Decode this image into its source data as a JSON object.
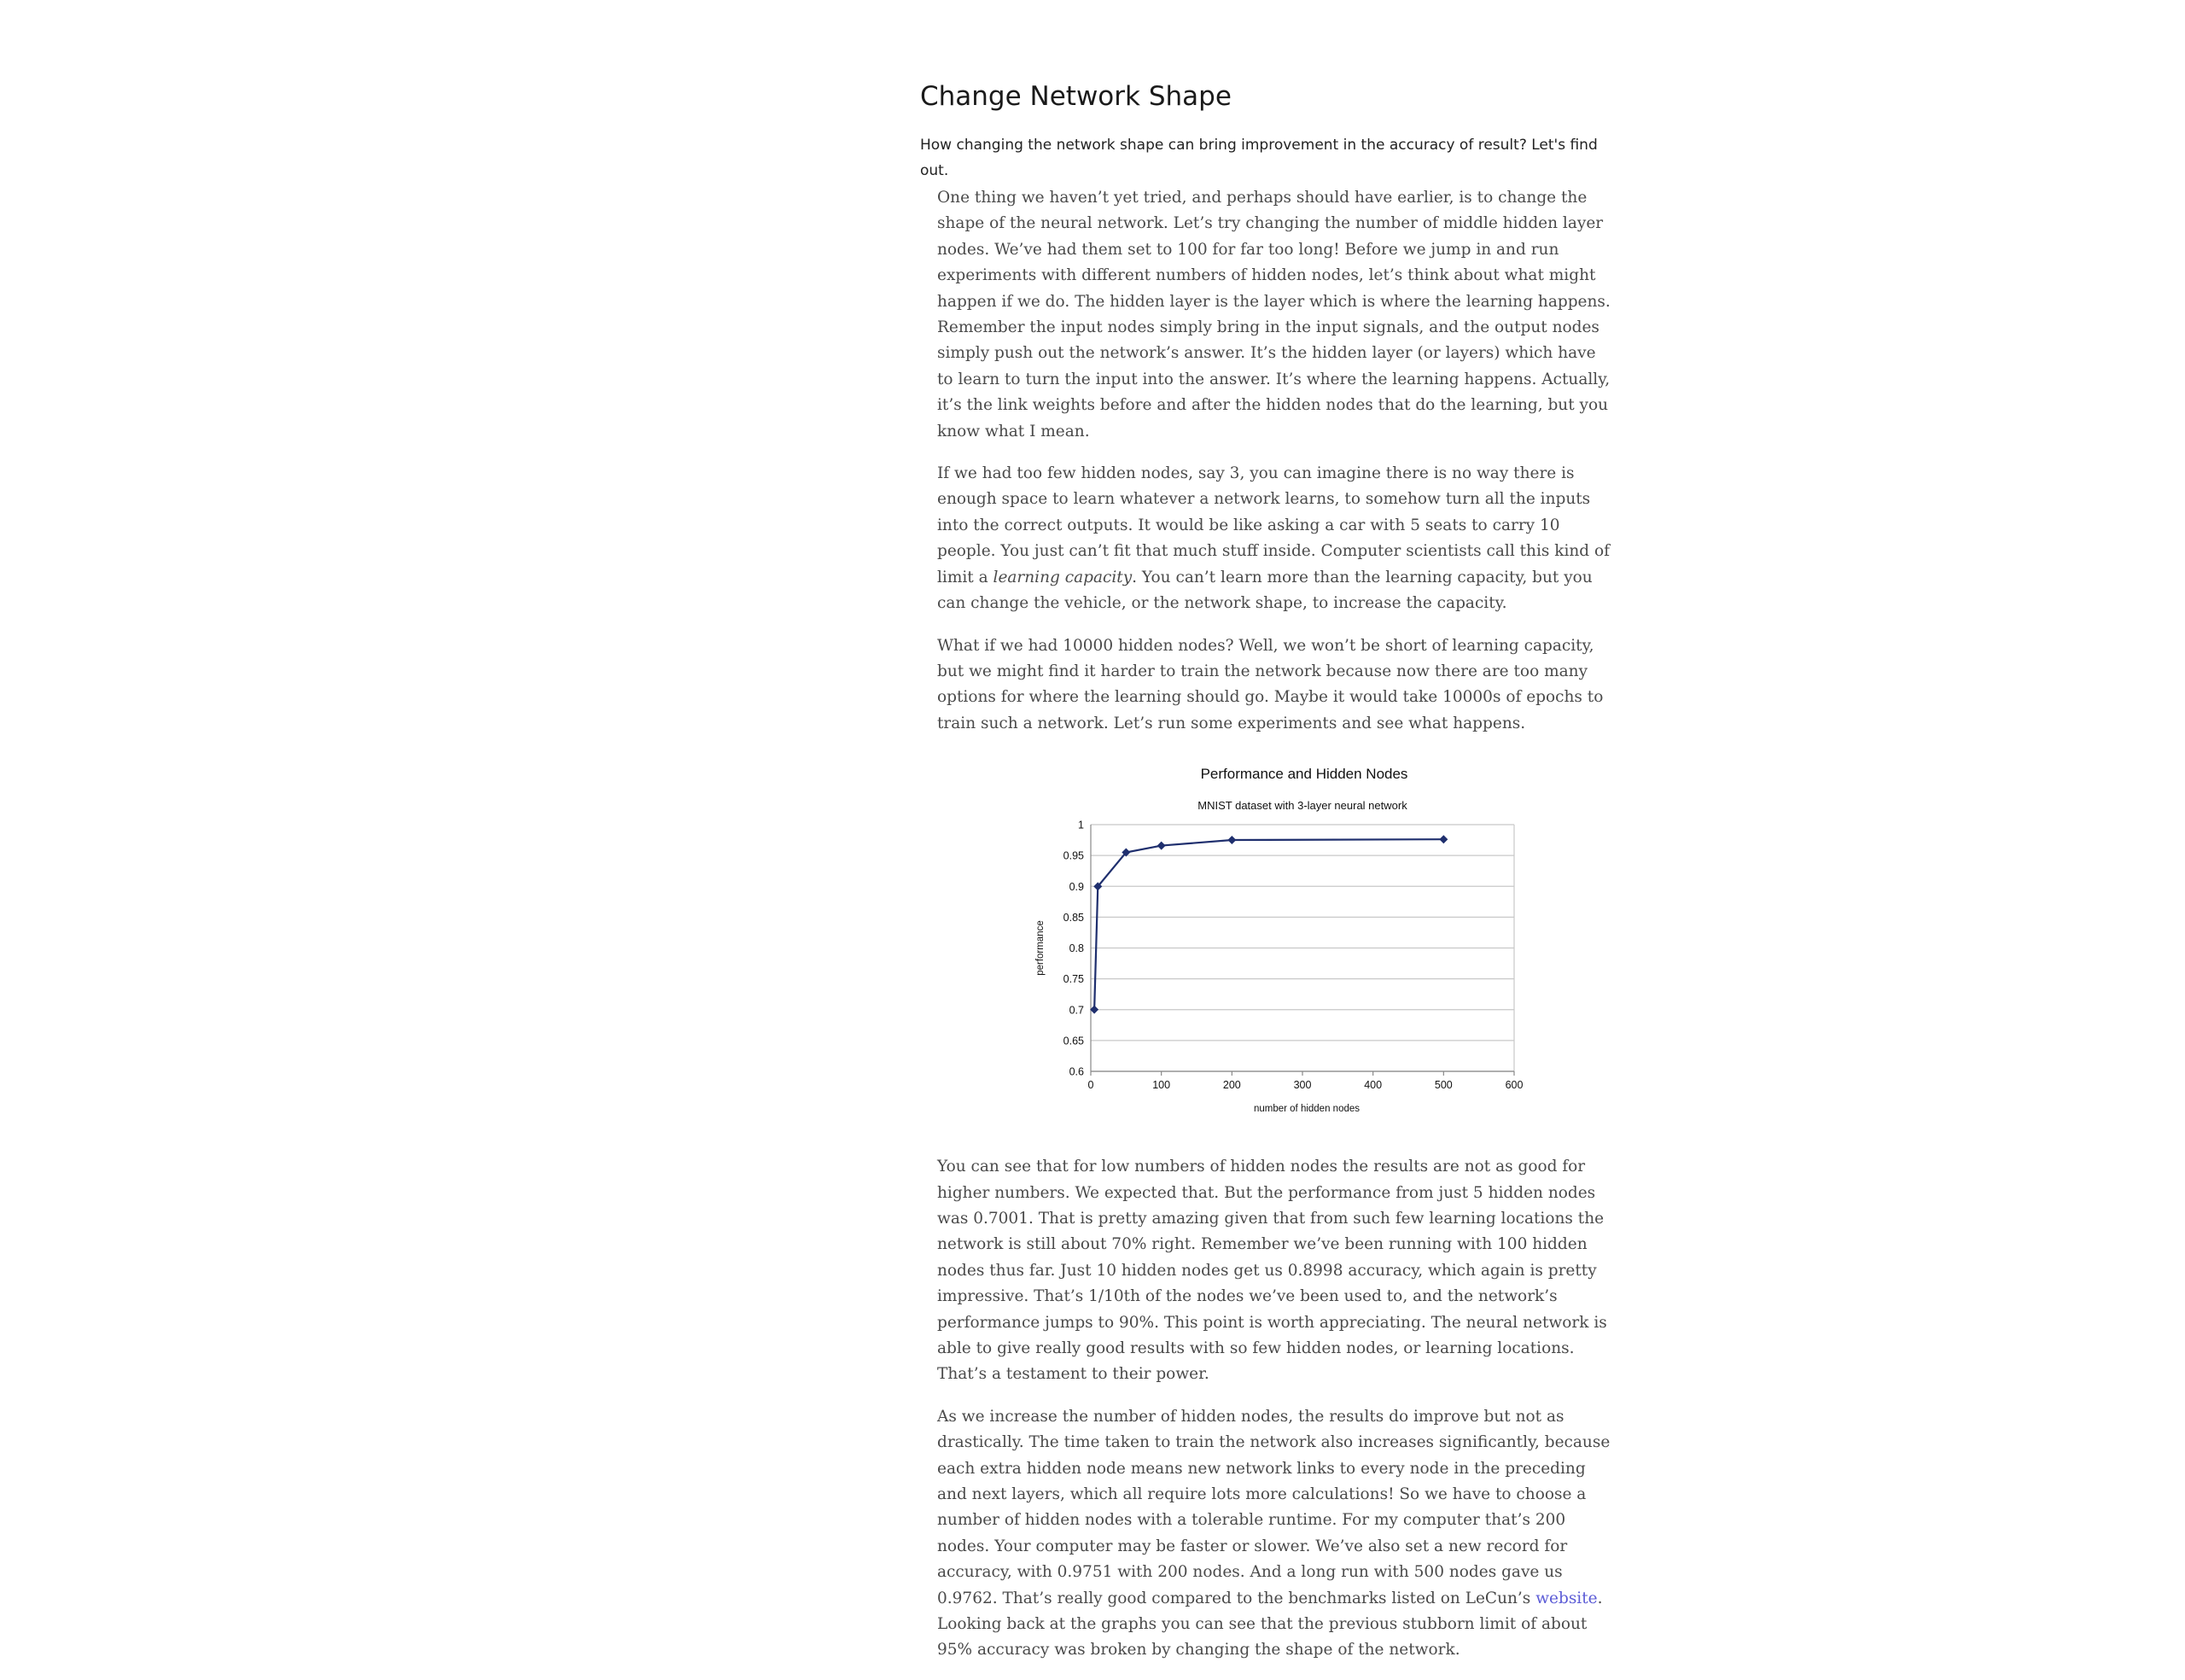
{
  "header": {
    "title": "Change Network Shape",
    "subtitle": "How changing the network shape can bring improvement in the accuracy of result? Let's find out."
  },
  "article": {
    "p1": "One thing we haven’t yet tried, and perhaps should have earlier, is to change the shape of the neural network. Let’s try changing the number of middle hidden layer nodes. We’ve had them set to 100 for far too long! Before we jump in and run experiments with different numbers of hidden nodes, let’s think about what might happen if we do. The hidden layer is the layer which is where the learning happens. Remember the input nodes simply bring in the input signals, and the output nodes simply push out the network’s answer. It’s the hidden layer (or layers) which have to learn to turn the input into the answer. It’s where the learning happens. Actually, it’s the link weights before and after the hidden nodes that do the learning, but you know what I mean.",
    "p2_a": "If we had too few hidden nodes, say 3, you can imagine there is no way there is enough space to learn whatever a network learns, to somehow turn all the inputs into the correct outputs. It would be like asking a car with 5 seats to carry 10 people. You just can’t fit that much stuff inside. Computer scientists call this kind of limit a ",
    "p2_em": "learning capacity",
    "p2_b": ". You can’t learn more than the learning capacity, but you can change the vehicle, or the network shape, to increase the capacity.",
    "p3": "What if we had 10000 hidden nodes? Well, we won’t be short of learning capacity, but we might find it harder to train the network because now there are too many options for where the learning should go. Maybe it would take 10000s of epochs to train such a network. Let’s run some experiments and see what happens.",
    "p4_a": "You can see that for low numbers of hidden nodes the results are not as good for higher numbers. We expected that. But the performance from just 5 hidden nodes was 0.7001. That is pretty amazing given that from such few learning locations the network is still about 70% right. Remember we’ve been running with 100 hidden nodes thus far. Just 10 hidden nodes get us 0.8998 accuracy, which again is pretty impressive. That’s ",
    "p4_math": "1/10th",
    "p4_b": " of the nodes we’ve been used to, and the network’s performance jumps to 90%. This point is worth appreciating. The neural network is able to give really good results with so few hidden nodes, or learning locations. That’s a testament to their power.",
    "p5_a": "As we increase the number of hidden nodes, the results do improve but not as drastically. The time taken to train the network also increases significantly, because each extra hidden node means new network links to every node in the preceding and next layers, which all require lots more calculations! So we have to choose a number of hidden nodes with a tolerable runtime. For my computer that’s 200 nodes. Your computer may be faster or slower. We’ve also set a new record for accuracy, with 0.9751 with 200 nodes. And a long run with 500 nodes gave us 0.9762. That’s really good compared to the benchmarks listed on LeCun’s ",
    "p5_link": "website",
    "p5_b": ". Looking back at the graphs you can see that the previous stubborn limit of about 95% accuracy was broken by changing the shape of the network."
  },
  "chart_data": {
    "type": "line",
    "title": "Performance and Hidden Nodes",
    "subtitle": "MNIST dataset with 3-layer neural network",
    "xlabel": "number of hidden nodes",
    "ylabel": "performance",
    "xlim": [
      0,
      600
    ],
    "ylim": [
      0.6,
      1
    ],
    "xticks": [
      "0",
      "100",
      "200",
      "300",
      "400",
      "500",
      "600"
    ],
    "yticks": [
      "0.6",
      "0.65",
      "0.7",
      "0.75",
      "0.8",
      "0.85",
      "0.9",
      "0.95",
      "1"
    ],
    "grid": "horizontal",
    "legend": "none",
    "series": [
      {
        "color": "#1f2f6e",
        "marker": "diamond",
        "x": [
          5,
          10,
          50,
          100,
          200,
          500
        ],
        "y": [
          0.7001,
          0.8998,
          0.955,
          0.966,
          0.9751,
          0.9762
        ]
      }
    ]
  }
}
